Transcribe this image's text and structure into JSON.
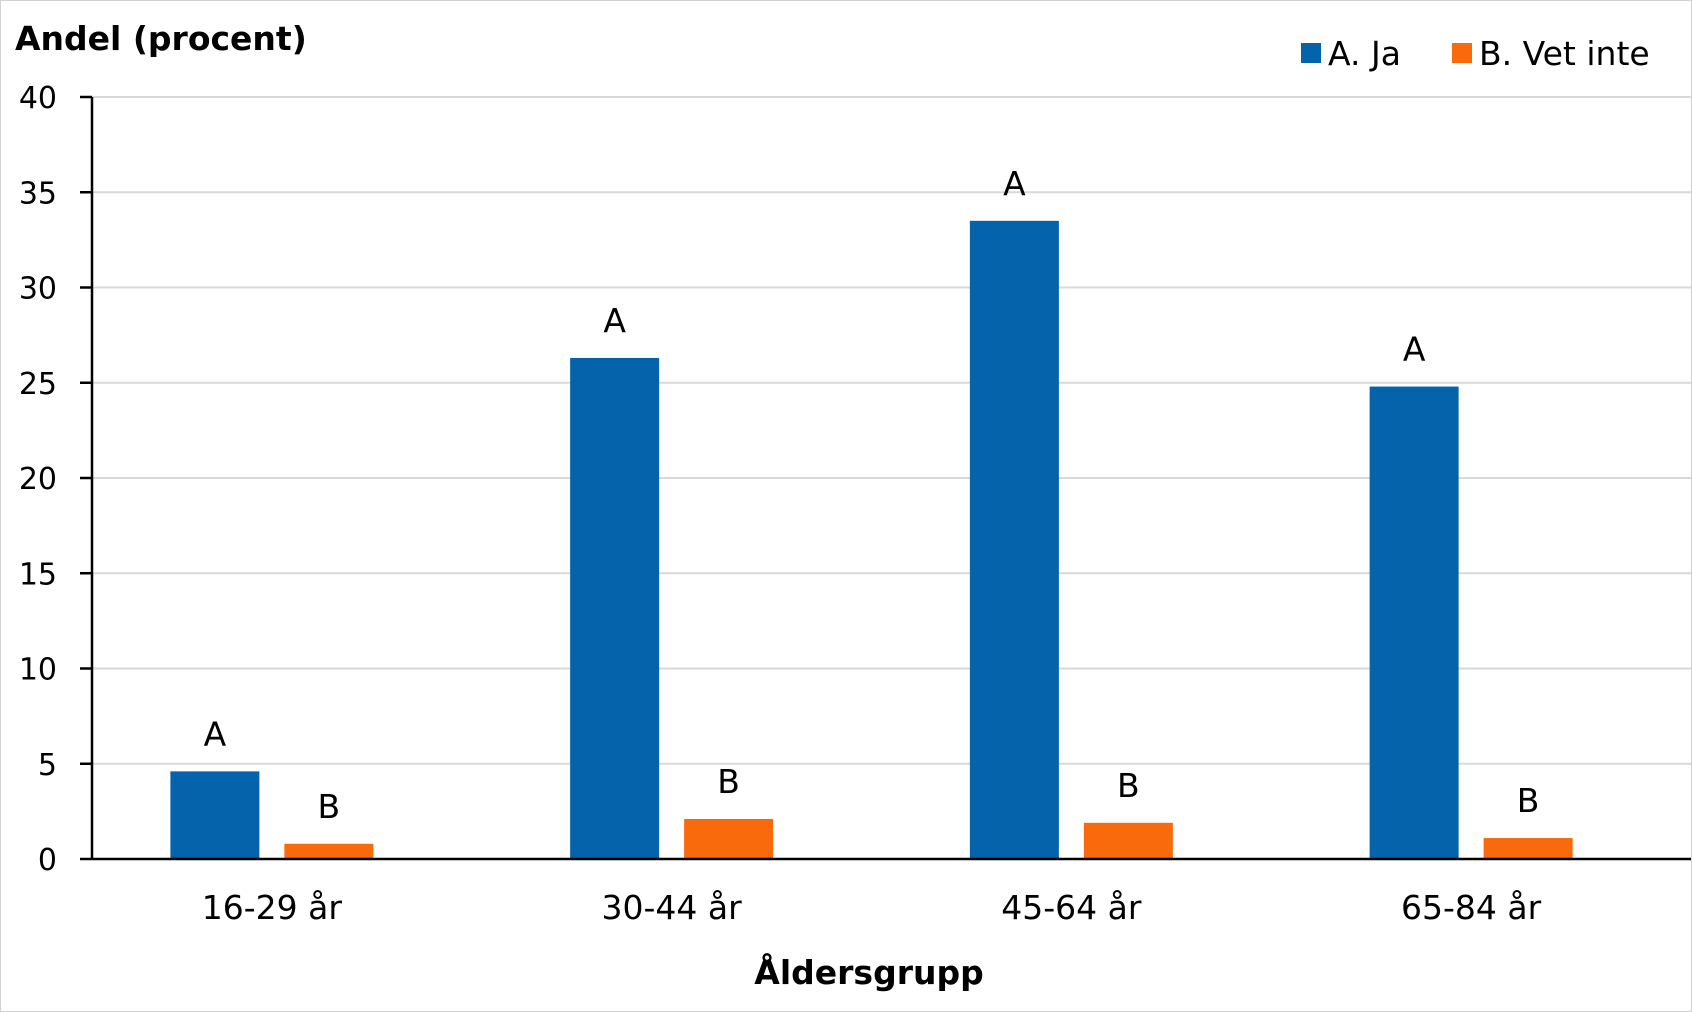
{
  "chart_data": {
    "type": "bar",
    "ylabel": "Andel (procent)",
    "xlabel": "Åldersgrupp",
    "ylim": [
      0,
      40
    ],
    "yticks": [
      0,
      5,
      10,
      15,
      20,
      25,
      30,
      35,
      40
    ],
    "grid": true,
    "legend_position": "top-right",
    "categories": [
      "16-29 år",
      "30-44 år",
      "45-64 år",
      "65-84 år"
    ],
    "series": [
      {
        "name": "A. Ja",
        "bar_label": "A",
        "color": "#0563AC",
        "values": [
          4.6,
          26.3,
          33.5,
          24.8
        ]
      },
      {
        "name": "B. Vet inte",
        "bar_label": "B",
        "color": "#F96A0C",
        "values": [
          0.8,
          2.1,
          1.9,
          1.1
        ]
      }
    ]
  }
}
